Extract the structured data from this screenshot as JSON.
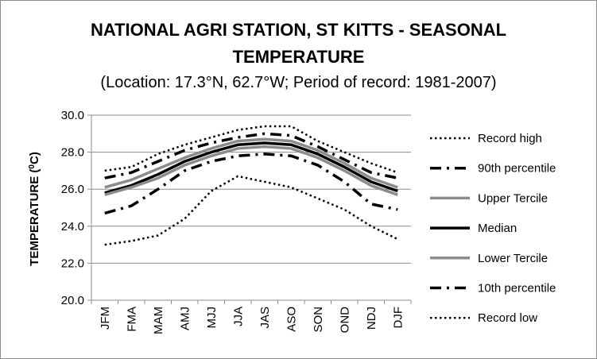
{
  "chart_data": {
    "type": "line",
    "title_line1": "NATIONAL AGRI STATION, ST KITTS - SEASONAL",
    "title_line2": "TEMPERATURE",
    "subtitle": "(Location: 17.3°N, 62.7°W; Period of record: 1981-2007)",
    "ylabel": "TEMPERATURE (",
    "ylabel_sup": "0",
    "ylabel_end": "C)",
    "xlabel": "",
    "ylim": [
      20.0,
      30.0
    ],
    "yticks": [
      "20.0",
      "22.0",
      "24.0",
      "26.0",
      "28.0",
      "30.0"
    ],
    "yticks_values": [
      20,
      22,
      24,
      26,
      28,
      30
    ],
    "categories": [
      "JFM",
      "FMA",
      "MAM",
      "AMJ",
      "MJJ",
      "JJA",
      "JAS",
      "ASO",
      "SON",
      "OND",
      "NDJ",
      "DJF"
    ],
    "grid": true,
    "legend_position": "right",
    "series": [
      {
        "name": "Record high",
        "style": "dotted",
        "color": "#000000",
        "values": [
          27.0,
          27.2,
          27.9,
          28.4,
          28.8,
          29.2,
          29.4,
          29.4,
          28.6,
          28.0,
          27.4,
          26.9
        ]
      },
      {
        "name": "90th percentile",
        "style": "dashdot",
        "color": "#000000",
        "values": [
          26.6,
          26.9,
          27.5,
          28.1,
          28.5,
          28.8,
          29.0,
          28.9,
          28.3,
          27.6,
          26.9,
          26.6
        ]
      },
      {
        "name": "Upper Tercile",
        "style": "solid-gray",
        "color": "#8c8c8c",
        "values": [
          26.1,
          26.5,
          27.1,
          27.7,
          28.2,
          28.6,
          28.7,
          28.6,
          28.1,
          27.4,
          26.6,
          26.1
        ]
      },
      {
        "name": "Median",
        "style": "solid-black",
        "color": "#000000",
        "values": [
          25.8,
          26.2,
          26.8,
          27.5,
          28.0,
          28.4,
          28.5,
          28.4,
          27.9,
          27.2,
          26.4,
          25.9
        ]
      },
      {
        "name": "Lower Tercile",
        "style": "solid-gray",
        "color": "#8c8c8c",
        "values": [
          25.7,
          26.1,
          26.6,
          27.3,
          27.8,
          28.2,
          28.3,
          28.2,
          27.7,
          27.0,
          26.2,
          25.7
        ]
      },
      {
        "name": "10th percentile",
        "style": "dashdot",
        "color": "#000000",
        "values": [
          24.7,
          25.1,
          26.0,
          27.0,
          27.5,
          27.8,
          27.9,
          27.8,
          27.3,
          26.4,
          25.2,
          24.9
        ]
      },
      {
        "name": "Record low",
        "style": "dotted",
        "color": "#000000",
        "values": [
          23.0,
          23.2,
          23.5,
          24.4,
          25.9,
          26.7,
          26.4,
          26.1,
          25.5,
          24.9,
          24.0,
          23.3
        ]
      }
    ]
  }
}
